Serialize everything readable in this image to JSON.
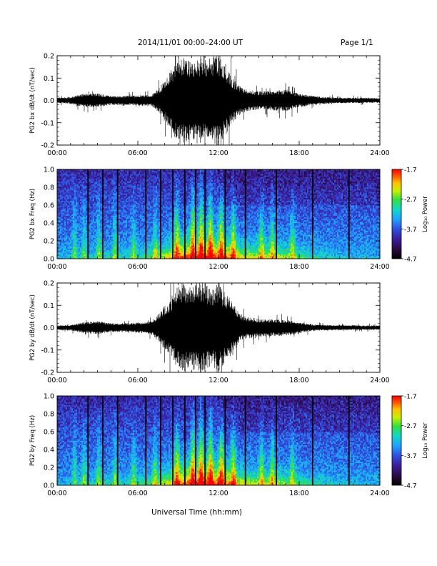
{
  "header": {
    "title": "2014/11/01   00:00–24:00 UT",
    "page": "Page 1/1"
  },
  "footer": {
    "xlabel": "Universal Time (hh:mm)"
  },
  "colors": {
    "trace": "#000000",
    "colormap": [
      "#000000",
      "#2a0a3c",
      "#3b1d9a",
      "#2f4fe0",
      "#1fa0ff",
      "#10d8c8",
      "#30e040",
      "#c8f000",
      "#ffc000",
      "#ff5000",
      "#ff0000"
    ]
  },
  "chart_data": [
    {
      "type": "line",
      "ylabel": "PG2 bx dB/dt (nT/sec)",
      "xlim_hours": [
        0,
        24
      ],
      "ylim": [
        -0.2,
        0.2
      ],
      "yticks": [
        "0.2",
        "0.1",
        "0.0",
        "-0.1",
        "-0.2"
      ],
      "xticks": [
        "00:00",
        "06:00",
        "12:00",
        "18:00",
        "24:00"
      ],
      "envelope": {
        "hours": [
          0,
          1,
          2,
          3,
          4,
          5,
          6,
          7,
          7.5,
          8,
          8.5,
          9,
          9.5,
          10,
          10.5,
          11,
          11.5,
          12,
          12.5,
          13,
          13.5,
          14,
          15,
          16,
          17,
          18,
          19,
          20,
          21,
          22,
          23,
          24
        ],
        "amplitude": [
          0.012,
          0.015,
          0.03,
          0.032,
          0.02,
          0.022,
          0.022,
          0.025,
          0.05,
          0.09,
          0.14,
          0.2,
          0.19,
          0.17,
          0.2,
          0.18,
          0.2,
          0.2,
          0.16,
          0.1,
          0.07,
          0.05,
          0.04,
          0.045,
          0.05,
          0.03,
          0.02,
          0.015,
          0.013,
          0.012,
          0.012,
          0.01
        ]
      }
    },
    {
      "type": "heatmap",
      "ylabel": "PG2 bx Freq (Hz)",
      "xlim_hours": [
        0,
        24
      ],
      "ylim": [
        0,
        1.0
      ],
      "yticks": [
        "1.0",
        "0.8",
        "0.6",
        "0.4",
        "0.2",
        "0.0"
      ],
      "xticks": [
        "00:00",
        "06:00",
        "12:00",
        "18:00",
        "24:00"
      ],
      "colorbar": {
        "label": "Log₁₀ Power",
        "range": [
          -4.7,
          -1.7
        ],
        "ticks": [
          "-1.7",
          "-2.7",
          "-3.7",
          "-4.7"
        ]
      },
      "gap_hours": [
        2.3,
        3.4,
        4.5,
        6.6,
        7.7,
        8.6,
        9.5,
        10.3,
        11.0,
        12.5,
        14.0,
        16.3,
        19.0,
        21.7
      ]
    },
    {
      "type": "line",
      "ylabel": "PG2 by dB/dt (nT/sec)",
      "xlim_hours": [
        0,
        24
      ],
      "ylim": [
        -0.2,
        0.2
      ],
      "yticks": [
        "0.2",
        "0.1",
        "0.0",
        "-0.1",
        "-0.2"
      ],
      "xticks": [
        "00:00",
        "06:00",
        "12:00",
        "18:00",
        "24:00"
      ],
      "envelope": {
        "hours": [
          0,
          1,
          2,
          3,
          4,
          5,
          6,
          7,
          7.5,
          8,
          8.5,
          9,
          9.5,
          10,
          10.5,
          11,
          11.5,
          12,
          12.5,
          13,
          13.5,
          14,
          15,
          16,
          17,
          18,
          19,
          20,
          21,
          22,
          23,
          24
        ],
        "amplitude": [
          0.01,
          0.013,
          0.025,
          0.03,
          0.02,
          0.02,
          0.022,
          0.03,
          0.06,
          0.1,
          0.13,
          0.19,
          0.2,
          0.18,
          0.2,
          0.2,
          0.17,
          0.2,
          0.16,
          0.12,
          0.07,
          0.05,
          0.04,
          0.04,
          0.035,
          0.025,
          0.015,
          0.012,
          0.012,
          0.011,
          0.01,
          0.01
        ]
      }
    },
    {
      "type": "heatmap",
      "ylabel": "PG2 by Freq (Hz)",
      "xlim_hours": [
        0,
        24
      ],
      "ylim": [
        0,
        1.0
      ],
      "yticks": [
        "1.0",
        "0.8",
        "0.6",
        "0.4",
        "0.2",
        "0.0"
      ],
      "xticks": [
        "00:00",
        "06:00",
        "12:00",
        "18:00",
        "24:00"
      ],
      "colorbar": {
        "label": "Log₁₀ Power",
        "range": [
          -4.7,
          -1.7
        ],
        "ticks": [
          "-1.7",
          "-2.7",
          "-3.7",
          "-4.7"
        ]
      },
      "gap_hours": [
        2.3,
        3.4,
        4.5,
        6.6,
        7.7,
        8.6,
        9.5,
        10.3,
        11.0,
        12.5,
        14.0,
        16.3,
        19.0,
        21.7
      ]
    }
  ]
}
